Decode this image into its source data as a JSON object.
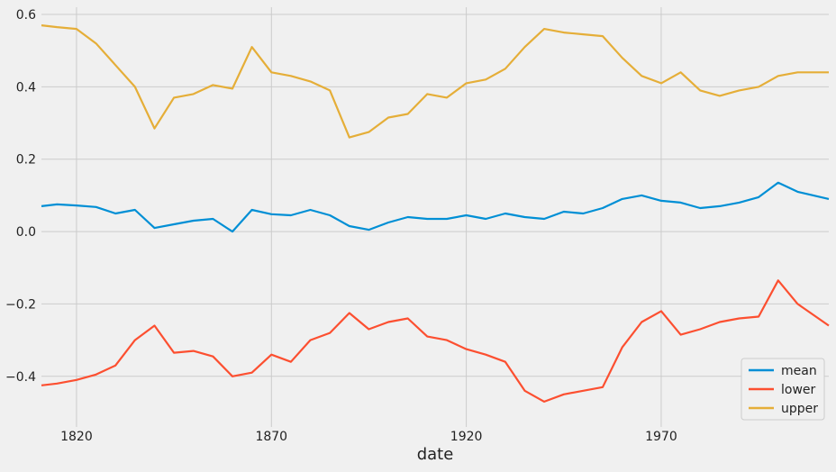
{
  "chart_data": {
    "type": "line",
    "title": "",
    "xlabel": "date",
    "ylabel": "",
    "xlim": [
      1811,
      2013
    ],
    "ylim": [
      -0.54,
      0.62
    ],
    "xticks": [
      1820,
      1870,
      1920,
      1970
    ],
    "yticks": [
      -0.4,
      -0.2,
      0.0,
      0.2,
      0.4,
      0.6
    ],
    "ytick_labels": [
      "−0.4",
      "−0.2",
      "0.0",
      "0.2",
      "0.4",
      "0.6"
    ],
    "grid": true,
    "legend_position": "lower-right",
    "x": [
      1811,
      1815,
      1820,
      1825,
      1830,
      1835,
      1840,
      1845,
      1850,
      1855,
      1860,
      1865,
      1870,
      1875,
      1880,
      1885,
      1890,
      1895,
      1900,
      1905,
      1910,
      1915,
      1920,
      1925,
      1930,
      1935,
      1940,
      1945,
      1950,
      1955,
      1960,
      1965,
      1970,
      1975,
      1980,
      1985,
      1990,
      1995,
      2000,
      2005,
      2013
    ],
    "series": [
      {
        "name": "mean",
        "color": "#008fd5",
        "values": [
          0.07,
          0.075,
          0.072,
          0.068,
          0.05,
          0.06,
          0.01,
          0.02,
          0.03,
          0.035,
          0.0,
          0.06,
          0.048,
          0.045,
          0.06,
          0.045,
          0.015,
          0.005,
          0.025,
          0.04,
          0.035,
          0.035,
          0.045,
          0.035,
          0.05,
          0.04,
          0.035,
          0.055,
          0.05,
          0.065,
          0.09,
          0.1,
          0.085,
          0.08,
          0.065,
          0.07,
          0.08,
          0.095,
          0.135,
          0.11,
          0.09
        ]
      },
      {
        "name": "lower",
        "color": "#fc4f30",
        "values": [
          -0.425,
          -0.42,
          -0.41,
          -0.395,
          -0.37,
          -0.3,
          -0.26,
          -0.335,
          -0.33,
          -0.345,
          -0.4,
          -0.39,
          -0.34,
          -0.36,
          -0.3,
          -0.28,
          -0.225,
          -0.27,
          -0.25,
          -0.24,
          -0.29,
          -0.3,
          -0.325,
          -0.34,
          -0.36,
          -0.44,
          -0.47,
          -0.45,
          -0.44,
          -0.43,
          -0.32,
          -0.25,
          -0.22,
          -0.285,
          -0.27,
          -0.25,
          -0.24,
          -0.235,
          -0.135,
          -0.2,
          -0.26
        ]
      },
      {
        "name": "upper",
        "color": "#e5ae38",
        "values": [
          0.57,
          0.565,
          0.56,
          0.52,
          0.46,
          0.4,
          0.285,
          0.37,
          0.38,
          0.405,
          0.395,
          0.51,
          0.44,
          0.43,
          0.415,
          0.39,
          0.26,
          0.275,
          0.315,
          0.325,
          0.38,
          0.37,
          0.41,
          0.42,
          0.45,
          0.51,
          0.56,
          0.55,
          0.545,
          0.54,
          0.48,
          0.43,
          0.41,
          0.44,
          0.39,
          0.375,
          0.39,
          0.4,
          0.43,
          0.44,
          0.44
        ]
      }
    ]
  }
}
